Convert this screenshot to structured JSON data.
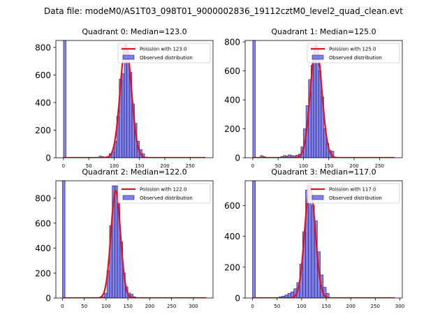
{
  "suptitle": "Data file: modeM0/AS1T03_098T01_9000002836_19112cztM0_level2_quad_clean.evt",
  "colors": {
    "hist_fill": "#6b6be6",
    "hist_edge": "#1f1f6e",
    "fit_line": "#e8101a"
  },
  "chart_data": [
    {
      "type": "bar",
      "title": "Quadrant 0: Median=123.0",
      "legend": {
        "placement": "top-right",
        "fit_label": "Poission with 123.0",
        "hist_label": "Observed distribution"
      },
      "xlim": [
        -15,
        295
      ],
      "ylim": [
        0,
        850
      ],
      "xticks": [
        0,
        50,
        100,
        150,
        200,
        250
      ],
      "yticks": [
        0,
        200,
        400,
        600,
        800
      ],
      "bin_width": 5,
      "bins": [
        {
          "x": 0,
          "value": 850
        },
        {
          "x": 70,
          "value": 12
        },
        {
          "x": 75,
          "value": 8
        },
        {
          "x": 80,
          "value": 5
        },
        {
          "x": 85,
          "value": 10
        },
        {
          "x": 90,
          "value": 30
        },
        {
          "x": 95,
          "value": 45
        },
        {
          "x": 100,
          "value": 120
        },
        {
          "x": 105,
          "value": 300
        },
        {
          "x": 110,
          "value": 570
        },
        {
          "x": 115,
          "value": 610
        },
        {
          "x": 120,
          "value": 800
        },
        {
          "x": 125,
          "value": 760
        },
        {
          "x": 130,
          "value": 620
        },
        {
          "x": 135,
          "value": 390
        },
        {
          "x": 140,
          "value": 250
        },
        {
          "x": 145,
          "value": 120
        },
        {
          "x": 150,
          "value": 60
        },
        {
          "x": 155,
          "value": 30
        }
      ],
      "fit": {
        "mean": 123,
        "peak": 820,
        "sigma": 11.1,
        "x_range": [
          0,
          280
        ]
      }
    },
    {
      "type": "bar",
      "title": "Quadrant 1: Median=125.0",
      "legend": {
        "placement": "top-right",
        "fit_label": "Poission with 125.0",
        "hist_label": "Observed distribution"
      },
      "xlim": [
        -15,
        295
      ],
      "ylim": [
        0,
        810
      ],
      "xticks": [
        0,
        50,
        100,
        150,
        200,
        250
      ],
      "yticks": [
        0,
        200,
        400,
        600,
        800
      ],
      "bin_width": 5,
      "bins": [
        {
          "x": 0,
          "value": 810
        },
        {
          "x": 15,
          "value": 15
        },
        {
          "x": 20,
          "value": 8
        },
        {
          "x": 55,
          "value": 8
        },
        {
          "x": 60,
          "value": 15
        },
        {
          "x": 65,
          "value": 12
        },
        {
          "x": 70,
          "value": 20
        },
        {
          "x": 75,
          "value": 15
        },
        {
          "x": 80,
          "value": 12
        },
        {
          "x": 85,
          "value": 18
        },
        {
          "x": 90,
          "value": 25
        },
        {
          "x": 95,
          "value": 75
        },
        {
          "x": 100,
          "value": 200
        },
        {
          "x": 105,
          "value": 360
        },
        {
          "x": 110,
          "value": 540
        },
        {
          "x": 115,
          "value": 640
        },
        {
          "x": 120,
          "value": 770
        },
        {
          "x": 125,
          "value": 730
        },
        {
          "x": 130,
          "value": 600
        },
        {
          "x": 135,
          "value": 420
        },
        {
          "x": 140,
          "value": 200
        },
        {
          "x": 145,
          "value": 100
        },
        {
          "x": 150,
          "value": 50
        },
        {
          "x": 155,
          "value": 45
        }
      ],
      "fit": {
        "mean": 125,
        "peak": 780,
        "sigma": 11.2,
        "x_range": [
          0,
          280
        ]
      }
    },
    {
      "type": "bar",
      "title": "Quadrant 2: Median=122.0",
      "legend": {
        "placement": "top-right",
        "fit_label": "Poission with 122.0",
        "hist_label": "Observed distribution"
      },
      "xlim": [
        -15,
        345
      ],
      "ylim": [
        0,
        940
      ],
      "xticks": [
        0,
        50,
        100,
        150,
        200,
        250,
        300
      ],
      "yticks": [
        0,
        200,
        400,
        600,
        800
      ],
      "bin_width": 6,
      "bins": [
        {
          "x": 0,
          "value": 940
        },
        {
          "x": 60,
          "value": 3
        },
        {
          "x": 72,
          "value": 3
        },
        {
          "x": 84,
          "value": 5
        },
        {
          "x": 90,
          "value": 10
        },
        {
          "x": 96,
          "value": 40
        },
        {
          "x": 102,
          "value": 220
        },
        {
          "x": 108,
          "value": 580
        },
        {
          "x": 114,
          "value": 900
        },
        {
          "x": 120,
          "value": 900
        },
        {
          "x": 126,
          "value": 830
        },
        {
          "x": 132,
          "value": 450
        },
        {
          "x": 138,
          "value": 200
        },
        {
          "x": 144,
          "value": 90
        },
        {
          "x": 150,
          "value": 40
        },
        {
          "x": 156,
          "value": 30
        },
        {
          "x": 162,
          "value": 10
        }
      ],
      "fit": {
        "mean": 122,
        "peak": 860,
        "sigma": 11.0,
        "x_range": [
          0,
          330
        ]
      }
    },
    {
      "type": "bar",
      "title": "Quadrant 3: Median=117.0",
      "legend": {
        "placement": "top-right",
        "fit_label": "Poission with 117.0",
        "hist_label": "Observed distribution"
      },
      "xlim": [
        -15,
        305
      ],
      "ylim": [
        0,
        760
      ],
      "xticks": [
        0,
        50,
        100,
        150,
        200,
        250,
        300
      ],
      "yticks": [
        0,
        200,
        400,
        600
      ],
      "bin_width": 6,
      "bins": [
        {
          "x": 0,
          "value": 760
        },
        {
          "x": 54,
          "value": 8
        },
        {
          "x": 60,
          "value": 12
        },
        {
          "x": 66,
          "value": 20
        },
        {
          "x": 72,
          "value": 30
        },
        {
          "x": 78,
          "value": 40
        },
        {
          "x": 84,
          "value": 60
        },
        {
          "x": 90,
          "value": 100
        },
        {
          "x": 96,
          "value": 220
        },
        {
          "x": 102,
          "value": 430
        },
        {
          "x": 108,
          "value": 700
        },
        {
          "x": 114,
          "value": 730
        },
        {
          "x": 120,
          "value": 600
        },
        {
          "x": 126,
          "value": 500
        },
        {
          "x": 132,
          "value": 300
        },
        {
          "x": 138,
          "value": 150
        },
        {
          "x": 144,
          "value": 70
        },
        {
          "x": 150,
          "value": 30
        }
      ],
      "fit": {
        "mean": 117,
        "peak": 725,
        "sigma": 10.8,
        "x_range": [
          0,
          290
        ]
      }
    }
  ]
}
